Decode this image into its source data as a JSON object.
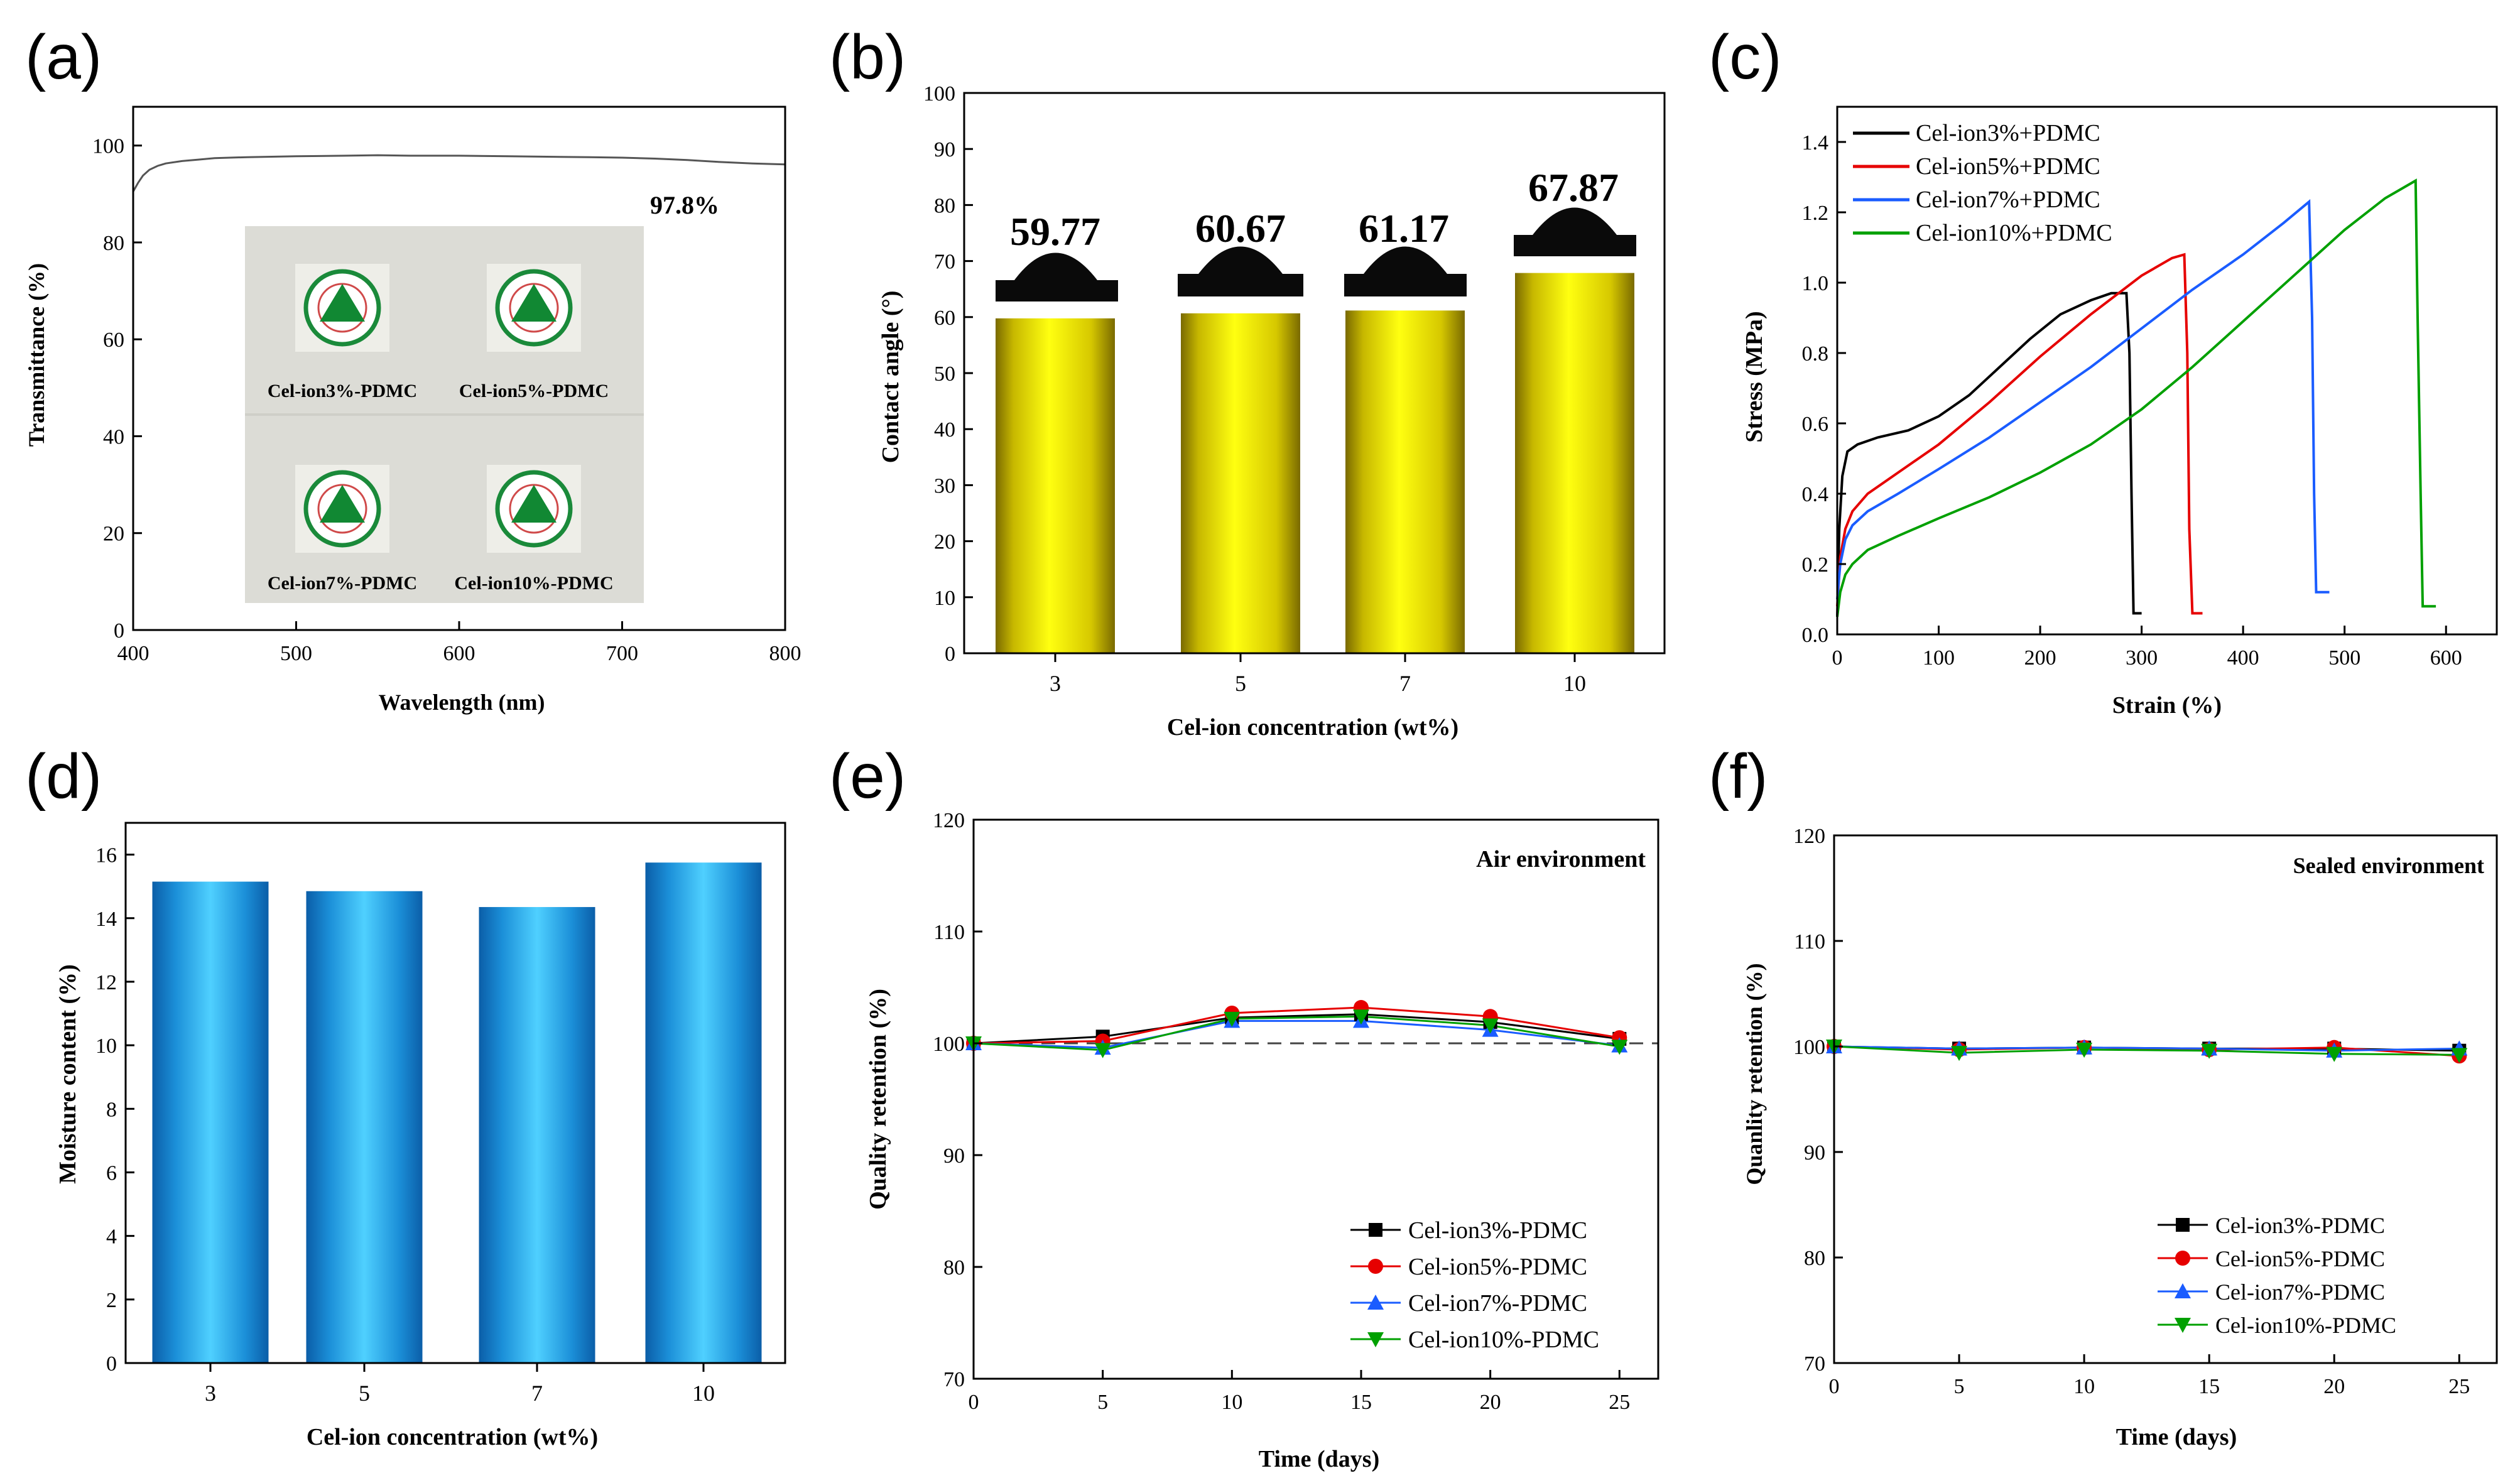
{
  "chart_data": [
    {
      "panel_label": "(a)",
      "type": "line",
      "xlabel": "Wavelength (nm)",
      "ylabel": "Transmittance (%)",
      "xlim": [
        400,
        800
      ],
      "ylim": [
        0,
        108
      ],
      "xticks": [
        400,
        500,
        600,
        700,
        800
      ],
      "yticks": [
        0,
        20,
        40,
        60,
        80,
        100
      ],
      "annotation": "97.8%",
      "series": [
        {
          "name": "Transmittance",
          "color": "#555555",
          "x": [
            400,
            403,
            406,
            410,
            415,
            420,
            430,
            440,
            450,
            470,
            500,
            530,
            550,
            570,
            600,
            630,
            650,
            680,
            700,
            720,
            740,
            760,
            780,
            800
          ],
          "y": [
            90.5,
            92.3,
            93.8,
            95.0,
            95.8,
            96.3,
            96.8,
            97.1,
            97.4,
            97.6,
            97.8,
            97.9,
            98.0,
            97.9,
            97.9,
            97.8,
            97.7,
            97.6,
            97.5,
            97.3,
            97.0,
            96.6,
            96.3,
            96.1
          ]
        }
      ],
      "inset_labels": [
        "Cel-ion3%-PDMC",
        "Cel-ion5%-PDMC",
        "Cel-ion7%-PDMC",
        "Cel-ion10%-PDMC"
      ]
    },
    {
      "panel_label": "(b)",
      "type": "bar",
      "xlabel": "Cel-ion concentration (wt%)",
      "ylabel": "Contact angle (°)",
      "categories": [
        "3",
        "5",
        "7",
        "10"
      ],
      "values": [
        59.77,
        60.67,
        61.17,
        67.87
      ],
      "value_labels": [
        "59.77",
        "60.67",
        "61.17",
        "67.87"
      ],
      "ylim": [
        0,
        100
      ],
      "yticks": [
        0,
        10,
        20,
        30,
        40,
        50,
        60,
        70,
        80,
        90,
        100
      ],
      "bar_color": "#e6e600"
    },
    {
      "panel_label": "(c)",
      "type": "line",
      "xlabel": "Strain (%)",
      "ylabel": "Stress (MPa)",
      "xlim": [
        0,
        650
      ],
      "ylim": [
        0,
        1.5
      ],
      "xticks": [
        0,
        100,
        200,
        300,
        400,
        500,
        600
      ],
      "yticks": [
        0.0,
        0.2,
        0.4,
        0.6,
        0.8,
        1.0,
        1.2,
        1.4
      ],
      "legend_position": "top-left",
      "series": [
        {
          "name": "Cel-ion3%+PDMC",
          "color": "#000000",
          "x": [
            0,
            2,
            5,
            10,
            20,
            40,
            70,
            100,
            130,
            160,
            190,
            220,
            250,
            270,
            285,
            288,
            290,
            292,
            300
          ],
          "y": [
            0.05,
            0.3,
            0.45,
            0.52,
            0.54,
            0.56,
            0.58,
            0.62,
            0.68,
            0.76,
            0.84,
            0.91,
            0.95,
            0.97,
            0.97,
            0.8,
            0.4,
            0.06,
            0.06
          ]
        },
        {
          "name": "Cel-ion5%+PDMC",
          "color": "#e60000",
          "x": [
            0,
            3,
            8,
            15,
            30,
            60,
            100,
            150,
            200,
            250,
            300,
            330,
            342,
            345,
            347,
            350,
            360
          ],
          "y": [
            0.08,
            0.22,
            0.3,
            0.35,
            0.4,
            0.46,
            0.54,
            0.66,
            0.79,
            0.91,
            1.02,
            1.07,
            1.08,
            0.8,
            0.3,
            0.06,
            0.06
          ]
        },
        {
          "name": "Cel-ion7%+PDMC",
          "color": "#1a5cff",
          "x": [
            0,
            3,
            8,
            15,
            30,
            60,
            100,
            150,
            200,
            250,
            300,
            350,
            400,
            440,
            465,
            468,
            470,
            472,
            485
          ],
          "y": [
            0.1,
            0.2,
            0.27,
            0.31,
            0.35,
            0.4,
            0.47,
            0.56,
            0.66,
            0.76,
            0.87,
            0.98,
            1.08,
            1.17,
            1.23,
            0.9,
            0.4,
            0.12,
            0.12
          ]
        },
        {
          "name": "Cel-ion10%+PDMC",
          "color": "#00a000",
          "x": [
            0,
            3,
            8,
            15,
            30,
            60,
            100,
            150,
            200,
            250,
            300,
            350,
            400,
            450,
            500,
            540,
            570,
            572,
            575,
            577,
            590
          ],
          "y": [
            0.05,
            0.12,
            0.17,
            0.2,
            0.24,
            0.28,
            0.33,
            0.39,
            0.46,
            0.54,
            0.64,
            0.76,
            0.89,
            1.02,
            1.15,
            1.24,
            1.29,
            0.9,
            0.4,
            0.08,
            0.08
          ]
        }
      ]
    },
    {
      "panel_label": "(d)",
      "type": "bar",
      "xlabel": "Cel-ion concentration (wt%)",
      "ylabel": "Moisture content (%)",
      "categories": [
        "3",
        "5",
        "7",
        "10"
      ],
      "values": [
        15.15,
        14.85,
        14.35,
        15.75
      ],
      "ylim": [
        0,
        17
      ],
      "yticks": [
        0,
        2,
        4,
        6,
        8,
        10,
        12,
        14,
        16
      ],
      "bar_color": "#29b6ef"
    },
    {
      "panel_label": "(e)",
      "type": "line",
      "title": "Air environment",
      "xlabel": "Time (days)",
      "ylabel": "Quality retention (%)",
      "xlim": [
        0,
        26.5
      ],
      "ylim": [
        70,
        120
      ],
      "xticks": [
        0,
        5,
        10,
        15,
        20,
        25
      ],
      "yticks": [
        70,
        80,
        90,
        100,
        110,
        120
      ],
      "reference_line": 100,
      "legend_position": "bottom-right",
      "series": [
        {
          "name": "Cel-ion3%-PDMC",
          "color": "#000000",
          "marker": "square",
          "x": [
            0,
            5,
            10,
            15,
            20,
            25
          ],
          "y": [
            100,
            100.6,
            102.3,
            102.6,
            101.9,
            100.4
          ]
        },
        {
          "name": "Cel-ion5%-PDMC",
          "color": "#e60000",
          "marker": "circle",
          "x": [
            0,
            5,
            10,
            15,
            20,
            25
          ],
          "y": [
            100,
            100.2,
            102.7,
            103.2,
            102.4,
            100.5
          ]
        },
        {
          "name": "Cel-ion7%-PDMC",
          "color": "#1a5cff",
          "marker": "triangle-up",
          "x": [
            0,
            5,
            10,
            15,
            20,
            25
          ],
          "y": [
            100,
            99.6,
            102.0,
            102.0,
            101.2,
            99.8
          ]
        },
        {
          "name": "Cel-ion10%-PDMC",
          "color": "#00a000",
          "marker": "triangle-down",
          "x": [
            0,
            5,
            10,
            15,
            20,
            25
          ],
          "y": [
            100,
            99.4,
            102.2,
            102.4,
            101.6,
            99.7
          ]
        }
      ]
    },
    {
      "panel_label": "(f)",
      "type": "line",
      "title": "Sealed environment",
      "xlabel": "Time (days)",
      "ylabel": "Quanlity retention (%)",
      "xlim": [
        0,
        26.5
      ],
      "ylim": [
        70,
        120
      ],
      "xticks": [
        0,
        5,
        10,
        15,
        20,
        25
      ],
      "yticks": [
        70,
        80,
        90,
        100,
        110,
        120
      ],
      "legend_position": "bottom-right",
      "series": [
        {
          "name": "Cel-ion3%-PDMC",
          "color": "#000000",
          "marker": "square",
          "x": [
            0,
            5,
            10,
            15,
            20,
            25
          ],
          "y": [
            100,
            99.8,
            99.9,
            99.8,
            99.8,
            99.6
          ]
        },
        {
          "name": "Cel-ion5%-PDMC",
          "color": "#e60000",
          "marker": "circle",
          "x": [
            0,
            5,
            10,
            15,
            20,
            25
          ],
          "y": [
            100,
            99.7,
            99.9,
            99.7,
            99.9,
            99.1
          ]
        },
        {
          "name": "Cel-ion7%-PDMC",
          "color": "#1a5cff",
          "marker": "triangle-up",
          "x": [
            0,
            5,
            10,
            15,
            20,
            25
          ],
          "y": [
            100,
            99.8,
            99.9,
            99.8,
            99.6,
            99.8
          ]
        },
        {
          "name": "Cel-ion10%-PDMC",
          "color": "#00a000",
          "marker": "triangle-down",
          "x": [
            0,
            5,
            10,
            15,
            20,
            25
          ],
          "y": [
            100,
            99.4,
            99.7,
            99.6,
            99.3,
            99.2
          ]
        }
      ]
    }
  ]
}
